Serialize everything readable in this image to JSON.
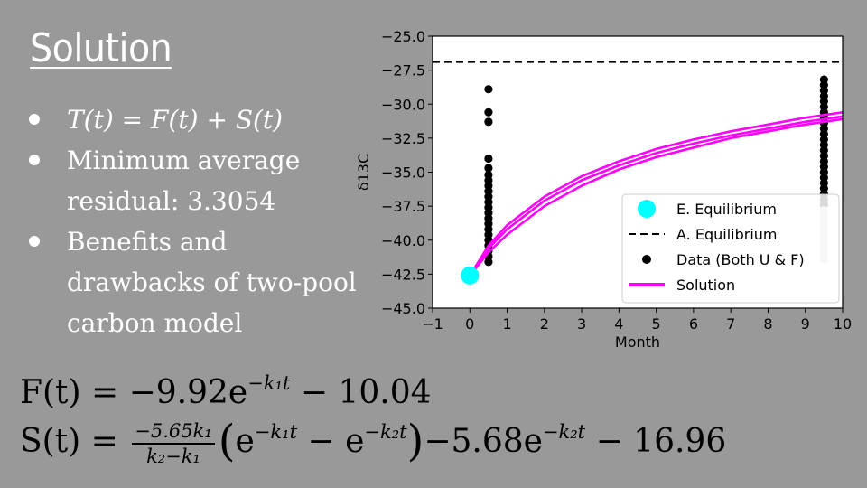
{
  "slide": {
    "title": "Solution",
    "bullets": [
      {
        "text": "T(t) = F(t) + S(t)"
      },
      {
        "text": "Minimum average residual:  3.3054"
      },
      {
        "text": "Benefits and drawbacks of two-pool carbon model"
      }
    ],
    "formula1": {
      "lhs": "F(t) = ",
      "part1": "−9.92e",
      "exp": "−k₁t",
      "part2": " − 10.04"
    },
    "formula2": {
      "lhs": "S(t) = ",
      "frac_num": "−5.65k₁",
      "frac_den": "k₂−k₁",
      "paren_open": "(",
      "term1": "e",
      "term1_exp": "−k₁t",
      "minus": " − ",
      "term2": "e",
      "term2_exp": "−k₂t",
      "paren_close": ")",
      "tail": "−5.68e",
      "tail_exp": "−k₂t",
      "tail_end": " − 16.96"
    }
  },
  "chart_data": {
    "type": "scatter",
    "xlabel": "Month",
    "ylabel": "δ13C",
    "xlim": [
      -1,
      10
    ],
    "ylim": [
      -45.0,
      -25.0
    ],
    "xticks": [
      "−1",
      "0",
      "1",
      "2",
      "3",
      "4",
      "5",
      "6",
      "7",
      "8",
      "9",
      "10"
    ],
    "yticks": [
      "−25.0",
      "−27.5",
      "−30.0",
      "−32.5",
      "−35.0",
      "−37.5",
      "−40.0",
      "−42.5",
      "−45.0"
    ],
    "legend_position": "lower-right",
    "legend": [
      {
        "label": "E. Equilibrium",
        "color": "#00ffff",
        "marker": "circle"
      },
      {
        "label": "A. Equilibrium",
        "color": "#000000",
        "marker": "dashed-line"
      },
      {
        "label": "Data (Both U & F)",
        "color": "#000000",
        "marker": "dot"
      },
      {
        "label": "Solution",
        "color": "#ff00ff",
        "marker": "line"
      }
    ],
    "e_equilibrium": {
      "x": 0,
      "y": -42.6
    },
    "a_equilibrium_y": -26.9,
    "data_points": [
      {
        "x": 0.5,
        "y": -28.9
      },
      {
        "x": 0.5,
        "y": -30.6
      },
      {
        "x": 0.5,
        "y": -31.3
      },
      {
        "x": 0.5,
        "y": -34.0
      },
      {
        "x": 0.5,
        "y": -34.7
      },
      {
        "x": 0.5,
        "y": -35.2
      },
      {
        "x": 0.5,
        "y": -35.6
      },
      {
        "x": 0.5,
        "y": -36.0
      },
      {
        "x": 0.5,
        "y": -36.4
      },
      {
        "x": 0.5,
        "y": -36.8
      },
      {
        "x": 0.5,
        "y": -37.2
      },
      {
        "x": 0.5,
        "y": -37.6
      },
      {
        "x": 0.5,
        "y": -38.0
      },
      {
        "x": 0.5,
        "y": -38.4
      },
      {
        "x": 0.5,
        "y": -38.8
      },
      {
        "x": 0.5,
        "y": -39.2
      },
      {
        "x": 0.5,
        "y": -39.6
      },
      {
        "x": 0.5,
        "y": -40.0
      },
      {
        "x": 0.5,
        "y": -40.4
      },
      {
        "x": 0.5,
        "y": -40.8
      },
      {
        "x": 0.5,
        "y": -41.2
      },
      {
        "x": 0.5,
        "y": -41.6
      },
      {
        "x": 9.5,
        "y": -28.2
      },
      {
        "x": 9.5,
        "y": -28.6
      },
      {
        "x": 9.5,
        "y": -29.0
      },
      {
        "x": 9.5,
        "y": -29.4
      },
      {
        "x": 9.5,
        "y": -29.8
      },
      {
        "x": 9.5,
        "y": -30.2
      },
      {
        "x": 9.5,
        "y": -30.6
      },
      {
        "x": 9.5,
        "y": -31.0
      },
      {
        "x": 9.5,
        "y": -31.4
      },
      {
        "x": 9.5,
        "y": -31.8
      },
      {
        "x": 9.5,
        "y": -32.2
      },
      {
        "x": 9.5,
        "y": -32.6
      },
      {
        "x": 9.5,
        "y": -33.0
      },
      {
        "x": 9.5,
        "y": -33.4
      },
      {
        "x": 9.5,
        "y": -33.8
      },
      {
        "x": 9.5,
        "y": -34.2
      },
      {
        "x": 9.5,
        "y": -34.6
      },
      {
        "x": 9.5,
        "y": -35.0
      },
      {
        "x": 9.5,
        "y": -35.4
      },
      {
        "x": 9.5,
        "y": -35.8
      },
      {
        "x": 9.5,
        "y": -36.2
      },
      {
        "x": 9.5,
        "y": -36.6
      },
      {
        "x": 9.5,
        "y": -37.0
      },
      {
        "x": 9.5,
        "y": -37.4
      },
      {
        "x": 9.5,
        "y": -37.8
      },
      {
        "x": 9.5,
        "y": -38.2
      },
      {
        "x": 9.5,
        "y": -38.6
      },
      {
        "x": 9.5,
        "y": -39.0
      },
      {
        "x": 9.5,
        "y": -39.4
      },
      {
        "x": 9.5,
        "y": -39.8
      },
      {
        "x": 9.5,
        "y": -40.2
      },
      {
        "x": 9.5,
        "y": -40.6
      },
      {
        "x": 9.5,
        "y": -41.0
      },
      {
        "x": 9.5,
        "y": -41.4
      }
    ],
    "solution_curves": [
      {
        "x": [
          0.0,
          0.5,
          1,
          2,
          3,
          4,
          5,
          6,
          7,
          8,
          9,
          10
        ],
        "y": [
          -42.6,
          -40.6,
          -39.2,
          -37.1,
          -35.6,
          -34.5,
          -33.6,
          -32.9,
          -32.3,
          -31.8,
          -31.3,
          -30.9
        ]
      },
      {
        "x": [
          0.0,
          0.5,
          1,
          2,
          3,
          4,
          5,
          6,
          7,
          8,
          9,
          10
        ],
        "y": [
          -42.6,
          -40.4,
          -38.9,
          -36.8,
          -35.3,
          -34.2,
          -33.3,
          -32.6,
          -32.0,
          -31.5,
          -31.0,
          -30.6
        ]
      },
      {
        "x": [
          0.0,
          0.5,
          1,
          2,
          3,
          4,
          5,
          6,
          7,
          8,
          9,
          10
        ],
        "y": [
          -42.6,
          -40.9,
          -39.6,
          -37.5,
          -36.0,
          -34.8,
          -33.9,
          -33.2,
          -32.5,
          -32.0,
          -31.5,
          -31.1
        ]
      }
    ]
  }
}
